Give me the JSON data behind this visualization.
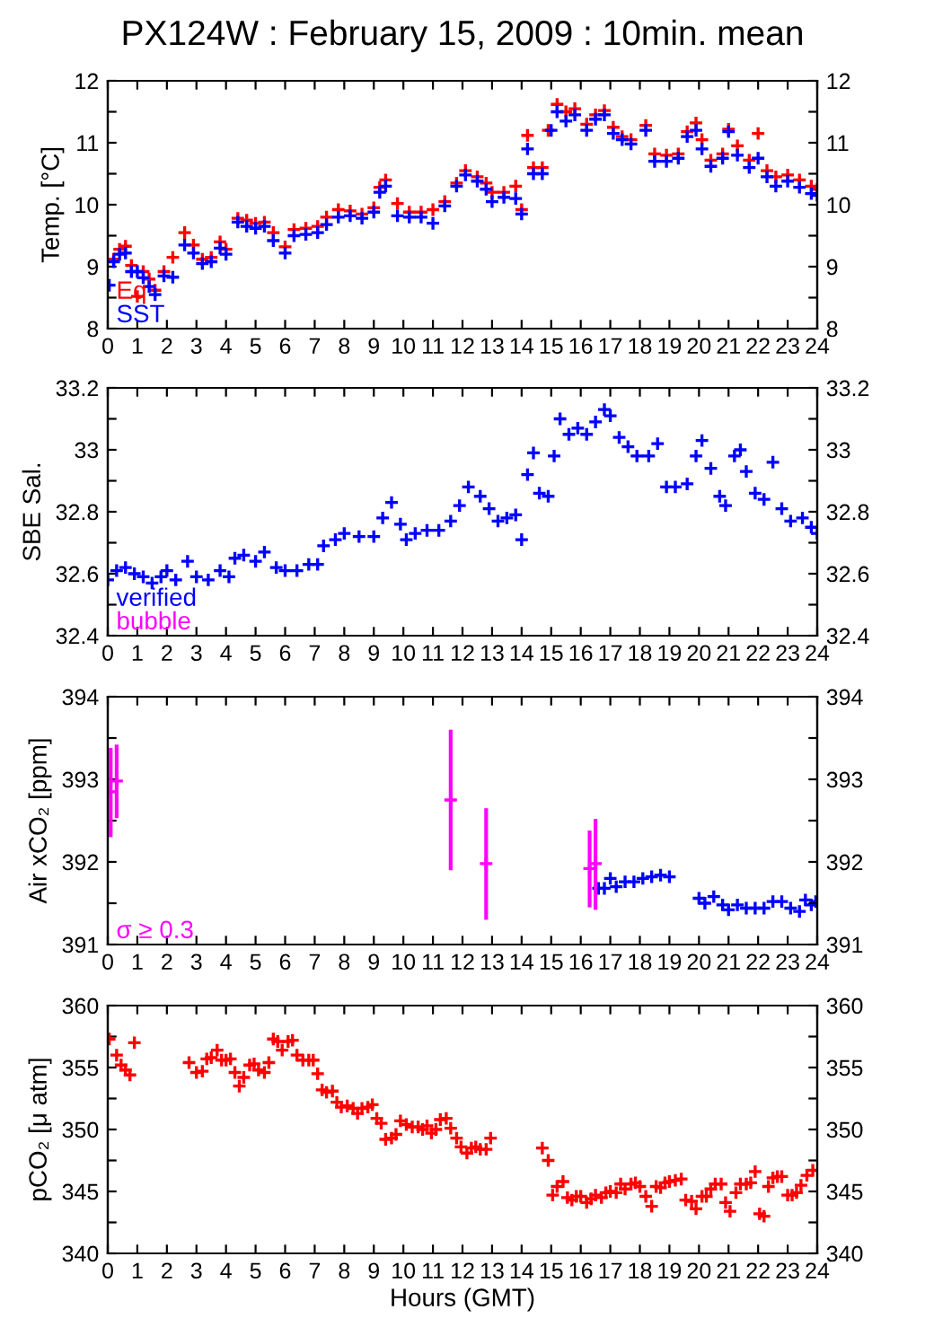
{
  "chart_data": [
    {
      "type": "scatter",
      "title": "PX124W : February 15, 2009 : 10min. mean",
      "ylabel": "Temp. [°C]",
      "marker": "cross",
      "legend": "bottom left",
      "grid": false,
      "xlim": [
        0,
        24
      ],
      "xticks": [
        0,
        1,
        2,
        3,
        4,
        5,
        6,
        7,
        8,
        9,
        10,
        11,
        12,
        13,
        14,
        15,
        16,
        17,
        18,
        19,
        20,
        21,
        22,
        23,
        24
      ],
      "ylim": [
        8,
        12
      ],
      "yticks": [
        8,
        {
          "value": 8.5,
          "label": null
        },
        9,
        {
          "value": 9.5,
          "label": null
        },
        10,
        {
          "value": 10.5,
          "label": null
        },
        11,
        {
          "value": 11.5,
          "label": null
        },
        12
      ],
      "y2lim": [
        8,
        12
      ],
      "y2ticks": [
        8,
        {
          "value": 8.5,
          "label": null
        },
        9,
        {
          "value": 9.5,
          "label": null
        },
        10,
        {
          "value": 10.5,
          "label": null
        },
        11,
        {
          "value": 11.5,
          "label": null
        },
        12
      ],
      "series": [
        {
          "name": "Eq",
          "color": "#ff0000",
          "x": [
            0.2,
            0.4,
            0.6,
            0.8,
            1.0,
            1.2,
            1.4,
            1.6,
            1.9,
            2.2,
            2.6,
            2.9,
            3.2,
            3.5,
            3.8,
            4.0,
            4.4,
            4.7,
            5.0,
            5.3,
            5.6,
            6.0,
            6.3,
            6.7,
            7.1,
            7.4,
            7.8,
            8.2,
            8.6,
            9.0,
            9.2,
            9.4,
            9.8,
            10.2,
            10.6,
            11.0,
            11.4,
            11.8,
            12.1,
            12.5,
            12.8,
            13.0,
            13.4,
            13.8,
            14.0,
            14.2,
            14.4,
            14.7,
            14.9,
            15.2,
            15.5,
            15.8,
            16.2,
            16.5,
            16.8,
            17.1,
            17.4,
            17.7,
            18.2,
            18.5,
            18.9,
            19.3,
            19.6,
            19.9,
            20.1,
            20.4,
            20.8,
            21.0,
            21.3,
            21.7,
            22.0,
            22.3,
            22.6,
            23.0,
            23.4,
            23.8,
            24.0
          ],
          "values": [
            9.12,
            9.28,
            9.33,
            9.02,
            8.52,
            8.92,
            8.8,
            8.62,
            8.92,
            9.15,
            9.55,
            9.35,
            9.12,
            9.15,
            9.4,
            9.28,
            9.78,
            9.75,
            9.7,
            9.72,
            9.55,
            9.32,
            9.6,
            9.62,
            9.65,
            9.8,
            9.92,
            9.9,
            9.85,
            9.95,
            10.28,
            10.4,
            10.02,
            9.88,
            9.88,
            9.92,
            10.05,
            10.35,
            10.55,
            10.45,
            10.35,
            10.2,
            10.2,
            10.3,
            9.92,
            11.12,
            10.6,
            10.6,
            11.2,
            11.62,
            11.5,
            11.55,
            11.3,
            11.45,
            11.52,
            11.25,
            11.1,
            11.05,
            11.28,
            10.82,
            10.8,
            10.82,
            11.18,
            11.32,
            11.05,
            10.72,
            10.82,
            11.22,
            10.95,
            10.72,
            11.15,
            10.55,
            10.45,
            10.48,
            10.4,
            10.3,
            10.25
          ]
        },
        {
          "name": "SST",
          "color": "#0000ff",
          "x": [
            0.05,
            0.2,
            0.4,
            0.6,
            0.8,
            1.0,
            1.2,
            1.4,
            1.6,
            1.9,
            2.2,
            2.6,
            2.9,
            3.2,
            3.5,
            3.8,
            4.0,
            4.4,
            4.7,
            5.0,
            5.3,
            5.6,
            6.0,
            6.3,
            6.7,
            7.1,
            7.4,
            7.8,
            8.2,
            8.6,
            9.0,
            9.2,
            9.4,
            9.8,
            10.2,
            10.6,
            11.0,
            11.4,
            11.8,
            12.1,
            12.5,
            12.8,
            13.0,
            13.4,
            13.8,
            14.0,
            14.2,
            14.4,
            14.7,
            15.0,
            15.2,
            15.5,
            15.8,
            16.2,
            16.5,
            16.8,
            17.1,
            17.4,
            17.7,
            18.2,
            18.5,
            18.9,
            19.3,
            19.6,
            19.9,
            20.1,
            20.4,
            20.8,
            21.0,
            21.3,
            21.7,
            22.0,
            22.3,
            22.6,
            23.0,
            23.4,
            23.8,
            24.0
          ],
          "values": [
            8.7,
            9.08,
            9.2,
            9.22,
            8.92,
            8.92,
            8.82,
            8.68,
            8.55,
            8.85,
            8.83,
            9.35,
            9.22,
            9.05,
            9.08,
            9.3,
            9.2,
            9.72,
            9.65,
            9.62,
            9.65,
            9.42,
            9.22,
            9.5,
            9.52,
            9.55,
            9.68,
            9.8,
            9.82,
            9.78,
            9.88,
            10.2,
            10.3,
            9.82,
            9.8,
            9.8,
            9.7,
            9.98,
            10.3,
            10.48,
            10.38,
            10.25,
            10.05,
            10.12,
            10.1,
            9.85,
            10.9,
            10.5,
            10.5,
            11.2,
            11.5,
            11.35,
            11.45,
            11.2,
            11.38,
            11.45,
            11.15,
            11.05,
            10.98,
            11.2,
            10.7,
            10.7,
            10.75,
            11.1,
            11.2,
            10.9,
            10.62,
            10.75,
            11.18,
            10.8,
            10.6,
            10.75,
            10.45,
            10.3,
            10.38,
            10.28,
            10.18,
            10.15
          ]
        }
      ]
    },
    {
      "type": "scatter",
      "ylabel": "SBE Sal.",
      "marker": "cross",
      "legend": "bottom left",
      "grid": false,
      "xlim": [
        0,
        24
      ],
      "xticks": [
        0,
        1,
        2,
        3,
        4,
        5,
        6,
        7,
        8,
        9,
        10,
        11,
        12,
        13,
        14,
        15,
        16,
        17,
        18,
        19,
        20,
        21,
        22,
        23,
        24
      ],
      "ylim": [
        32.4,
        33.2
      ],
      "yticks": [
        32.4,
        {
          "value": 32.5,
          "label": null
        },
        32.6,
        {
          "value": 32.7,
          "label": null
        },
        32.8,
        {
          "value": 32.9,
          "label": null
        },
        {
          "value": 33.0,
          "label": "33"
        },
        {
          "value": 33.1,
          "label": null
        },
        33.2
      ],
      "y2lim": [
        32.4,
        33.2
      ],
      "y2ticks": [
        32.4,
        {
          "value": 32.5,
          "label": null
        },
        32.6,
        {
          "value": 32.7,
          "label": null
        },
        32.8,
        {
          "value": 32.9,
          "label": null
        },
        {
          "value": 33.0,
          "label": "33"
        },
        {
          "value": 33.1,
          "label": null
        },
        33.2
      ],
      "series": [
        {
          "name": "verified",
          "color": "#0000ff",
          "x": [
            0,
            0.3,
            0.6,
            0.9,
            1.2,
            1.5,
            1.8,
            2.0,
            2.3,
            2.7,
            3.0,
            3.4,
            3.8,
            4.1,
            4.3,
            4.6,
            5.0,
            5.3,
            5.7,
            6.0,
            6.4,
            6.8,
            7.1,
            7.3,
            7.7,
            8.0,
            8.5,
            9.0,
            9.3,
            9.6,
            9.9,
            10.1,
            10.4,
            10.8,
            11.2,
            11.6,
            11.9,
            12.2,
            12.6,
            12.9,
            13.2,
            13.5,
            13.8,
            14.0,
            14.2,
            14.4,
            14.6,
            14.9,
            15.1,
            15.3,
            15.6,
            15.9,
            16.2,
            16.5,
            16.8,
            17.0,
            17.3,
            17.6,
            17.9,
            18.3,
            18.6,
            18.9,
            19.2,
            19.6,
            19.9,
            20.1,
            20.4,
            20.7,
            20.9,
            21.2,
            21.4,
            21.6,
            21.9,
            22.2,
            22.5,
            22.8,
            23.1,
            23.5,
            23.8,
            24.0
          ],
          "values": [
            32.58,
            32.61,
            32.62,
            32.6,
            32.59,
            32.57,
            32.59,
            32.61,
            32.58,
            32.64,
            32.59,
            32.58,
            32.61,
            32.59,
            32.65,
            32.66,
            32.64,
            32.67,
            32.62,
            32.61,
            32.61,
            32.63,
            32.63,
            32.69,
            32.71,
            32.73,
            32.72,
            32.72,
            32.78,
            32.83,
            32.76,
            32.71,
            32.73,
            32.74,
            32.74,
            32.77,
            32.82,
            32.88,
            32.85,
            32.81,
            32.77,
            32.78,
            32.79,
            32.71,
            32.92,
            32.99,
            32.86,
            32.85,
            32.98,
            33.1,
            33.05,
            33.07,
            33.05,
            33.09,
            33.13,
            33.11,
            33.04,
            33.01,
            32.98,
            32.98,
            33.02,
            32.88,
            32.88,
            32.89,
            32.98,
            33.03,
            32.94,
            32.85,
            32.82,
            32.98,
            33.0,
            32.93,
            32.86,
            32.84,
            32.96,
            32.81,
            32.77,
            32.78,
            32.75,
            32.73
          ]
        },
        {
          "name": "bubble",
          "color": "#ff00ff"
        }
      ]
    },
    {
      "type": "scatter",
      "ylabel": "Air xCO₂ [ppm]",
      "marker": "cross",
      "legend": "bottom left",
      "grid": false,
      "xlim": [
        0,
        24
      ],
      "xticks": [
        0,
        1,
        2,
        3,
        4,
        5,
        6,
        7,
        8,
        9,
        10,
        11,
        12,
        13,
        14,
        15,
        16,
        17,
        18,
        19,
        20,
        21,
        22,
        23,
        24
      ],
      "ylim": [
        391,
        394
      ],
      "yticks": [
        391,
        {
          "value": 391.5,
          "label": null
        },
        392,
        {
          "value": 392.5,
          "label": null
        },
        393,
        {
          "value": 393.5,
          "label": null
        },
        394
      ],
      "y2lim": [
        391,
        394
      ],
      "y2ticks": [
        391,
        {
          "value": 391.5,
          "label": null
        },
        392,
        {
          "value": 392.5,
          "label": null
        },
        393,
        {
          "value": 393.5,
          "label": null
        },
        394
      ],
      "series": [
        {
          "color": "#0000ff",
          "x": [
            16.6,
            16.8,
            17.0,
            17.2,
            17.5,
            17.8,
            18.1,
            18.4,
            18.7,
            19.0,
            20.0,
            20.2,
            20.5,
            20.8,
            21.0,
            21.3,
            21.6,
            21.9,
            22.2,
            22.5,
            22.8,
            23.1,
            23.4,
            23.6,
            23.8,
            23.95
          ],
          "values": [
            391.68,
            391.68,
            391.8,
            391.7,
            391.76,
            391.76,
            391.8,
            391.82,
            391.84,
            391.82,
            391.56,
            391.5,
            391.58,
            391.48,
            391.42,
            391.48,
            391.44,
            391.44,
            391.44,
            391.52,
            391.52,
            391.44,
            391.4,
            391.54,
            391.48,
            391.52
          ]
        },
        {
          "name": "σ ≥ 0.3",
          "color": "#ff00ff",
          "x": [
            0.1,
            0.3,
            11.6,
            12.8,
            16.3,
            16.5
          ],
          "values": [
            392.85,
            392.98,
            392.75,
            391.98,
            391.92,
            391.98
          ],
          "errors": [
            [
              392.3,
              393.38
            ],
            [
              392.53,
              393.42
            ],
            [
              391.9,
              393.6
            ],
            [
              391.3,
              392.65
            ],
            [
              391.45,
              392.38
            ],
            [
              391.42,
              392.52
            ]
          ]
        }
      ]
    },
    {
      "type": "scatter",
      "ylabel": "pCO₂ [μ atm]",
      "xlabel": "Hours (GMT)",
      "marker": "cross",
      "grid": false,
      "xlim": [
        0,
        24
      ],
      "xticks": [
        0,
        1,
        2,
        3,
        4,
        5,
        6,
        7,
        8,
        9,
        10,
        11,
        12,
        13,
        14,
        15,
        16,
        17,
        18,
        19,
        20,
        21,
        22,
        23,
        24
      ],
      "ylim": [
        340,
        360
      ],
      "yticks": [
        340,
        {
          "value": 342.5,
          "label": null
        },
        345,
        {
          "value": 347.5,
          "label": null
        },
        350,
        {
          "value": 352.5,
          "label": null
        },
        355,
        {
          "value": 357.5,
          "label": null
        },
        360
      ],
      "y2lim": [
        340,
        360
      ],
      "y2ticks": [
        340,
        {
          "value": 342.5,
          "label": null
        },
        345,
        {
          "value": 347.5,
          "label": null
        },
        350,
        {
          "value": 352.5,
          "label": null
        },
        355,
        {
          "value": 357.5,
          "label": null
        },
        360
      ],
      "series": [
        {
          "color": "#ff0000",
          "x": [
            0.05,
            0.3,
            0.45,
            0.6,
            0.75,
            0.9,
            2.75,
            3.0,
            3.2,
            3.35,
            3.5,
            3.7,
            3.85,
            4.0,
            4.15,
            4.3,
            4.45,
            4.6,
            4.8,
            4.95,
            5.1,
            5.3,
            5.45,
            5.6,
            5.75,
            5.9,
            6.1,
            6.25,
            6.4,
            6.6,
            6.8,
            6.95,
            7.1,
            7.25,
            7.4,
            7.6,
            7.75,
            7.9,
            8.1,
            8.3,
            8.45,
            8.6,
            8.8,
            8.95,
            9.1,
            9.25,
            9.4,
            9.6,
            9.75,
            9.9,
            10.1,
            10.3,
            10.5,
            10.65,
            10.8,
            10.95,
            11.1,
            11.25,
            11.45,
            11.6,
            11.8,
            11.95,
            12.15,
            12.3,
            12.45,
            12.6,
            12.8,
            12.95,
            14.7,
            14.9,
            15.05,
            15.2,
            15.4,
            15.55,
            15.7,
            15.85,
            16.0,
            16.2,
            16.35,
            16.5,
            16.7,
            16.85,
            17.0,
            17.2,
            17.35,
            17.5,
            17.7,
            17.85,
            18.0,
            18.2,
            18.4,
            18.55,
            18.7,
            18.85,
            19.0,
            19.2,
            19.4,
            19.55,
            19.75,
            19.9,
            20.1,
            20.25,
            20.4,
            20.55,
            20.75,
            20.9,
            21.05,
            21.25,
            21.4,
            21.6,
            21.75,
            21.9,
            22.05,
            22.2,
            22.35,
            22.5,
            22.65,
            22.8,
            23.0,
            23.15,
            23.3,
            23.45,
            23.65,
            23.85
          ],
          "values": [
            357.3,
            356,
            355.2,
            354.8,
            354.4,
            357,
            355.4,
            354.6,
            354.7,
            355.7,
            355.8,
            356.4,
            355.6,
            355.6,
            355.7,
            354.6,
            353.5,
            354.2,
            355.2,
            355.3,
            354.8,
            354.6,
            355.4,
            357.3,
            357.1,
            356.4,
            357.1,
            357.2,
            356,
            355.6,
            355.6,
            355.6,
            354.5,
            353.2,
            353,
            353.1,
            352.2,
            351.8,
            351.9,
            351.7,
            351.3,
            351.7,
            351.8,
            352,
            350.9,
            350.5,
            349.2,
            349.3,
            349.6,
            350.7,
            350.4,
            350.2,
            350.2,
            350,
            350.3,
            349.7,
            350,
            350.8,
            350.9,
            350.1,
            349.3,
            348.6,
            348.1,
            348.5,
            348.6,
            348.4,
            348.4,
            349.3,
            348.5,
            347.5,
            344.7,
            345.4,
            345.8,
            344.5,
            344.3,
            344.6,
            344.6,
            344.1,
            344.4,
            344.7,
            344.5,
            344.9,
            345,
            344.9,
            345.6,
            345.2,
            345.6,
            345.7,
            345.4,
            344.6,
            343.8,
            345.4,
            345.3,
            345.7,
            345.8,
            345.9,
            346,
            344.3,
            344.2,
            343.6,
            344.6,
            344.6,
            345.2,
            345.6,
            345.6,
            344.1,
            343.4,
            344.9,
            345.6,
            345.6,
            345.7,
            346.6,
            343.2,
            343,
            345.4,
            346.1,
            346.2,
            346.2,
            344.7,
            344.7,
            344.9,
            345.5,
            346.3,
            346.7
          ]
        }
      ]
    }
  ]
}
